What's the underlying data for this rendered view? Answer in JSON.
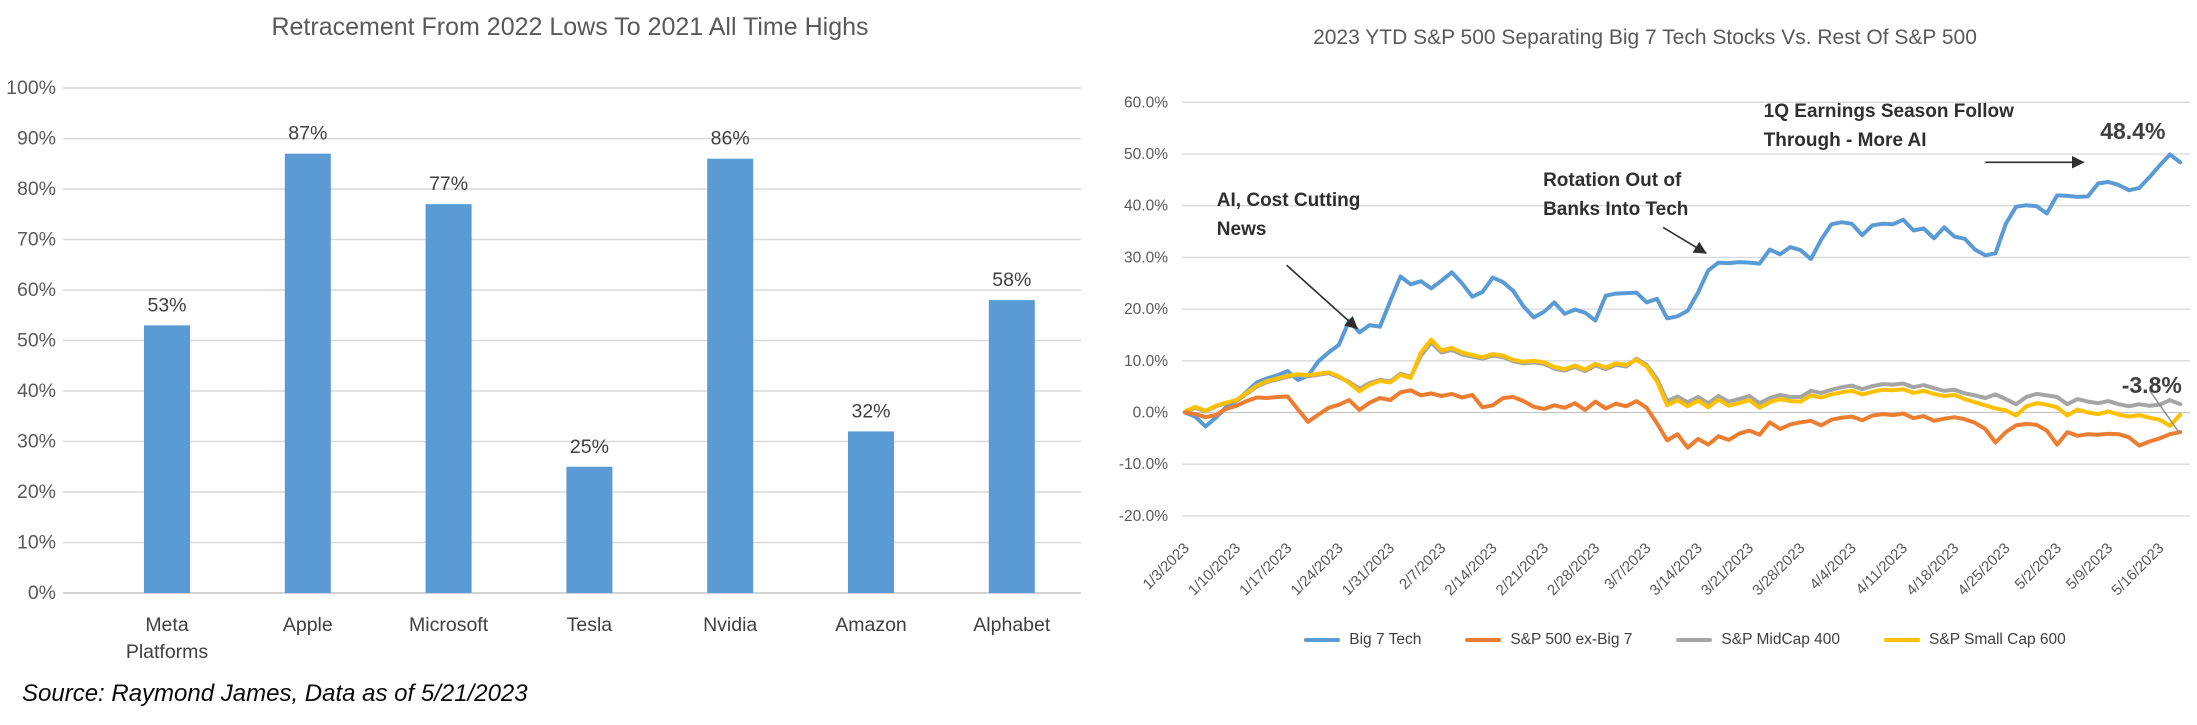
{
  "source_note": "Source: Raymond James, Data as of 5/21/2023",
  "colors": {
    "bar_blue": "#5B9BD5",
    "big7_blue": "#5B9BD5",
    "ex_big7_orange": "#ED7D31",
    "midcap_gray": "#A5A5A5",
    "smallcap_yellow": "#FFC000",
    "gridline": "#D9D9D9",
    "zero_line": "#C6C6C6",
    "axis_text": "#595959",
    "title_text": "#595959",
    "annotation_text": "#2F2F2F"
  },
  "chart_data": [
    {
      "type": "bar",
      "title": "Retracement From 2022 Lows To 2021 All Time Highs",
      "categories": [
        "Meta Platforms",
        "Apple",
        "Microsoft",
        "Tesla",
        "Nvidia",
        "Amazon",
        "Alphabet"
      ],
      "category_lines": [
        [
          "Meta",
          "Platforms"
        ],
        [
          "Apple"
        ],
        [
          "Microsoft"
        ],
        [
          "Tesla"
        ],
        [
          "Nvidia"
        ],
        [
          "Amazon"
        ],
        [
          "Alphabet"
        ]
      ],
      "values": [
        53,
        87,
        77,
        25,
        86,
        32,
        58
      ],
      "data_labels": [
        "53%",
        "87%",
        "77%",
        "25%",
        "86%",
        "32%",
        "58%"
      ],
      "xlabel": "",
      "ylabel": "",
      "ylim": [
        0,
        100
      ],
      "ytick_step": 10,
      "ytick_labels": [
        "0%",
        "10%",
        "20%",
        "30%",
        "40%",
        "50%",
        "60%",
        "70%",
        "80%",
        "90%",
        "100%"
      ],
      "grid": true,
      "legend": "none"
    },
    {
      "type": "line",
      "title": "2023 YTD S&P 500 Separating Big 7 Tech Stocks Vs. Rest Of S&P 500",
      "xlabel": "",
      "ylabel": "",
      "ylim": [
        -20,
        60
      ],
      "ytick_values": [
        60,
        50,
        40,
        30,
        20,
        10,
        0,
        -10,
        -20
      ],
      "ytick_labels": [
        "60.0%",
        "50.0%",
        "40.0%",
        "30.0%",
        "20.0%",
        "10.0%",
        "0.0%",
        "-10.0%",
        "-20.0%"
      ],
      "x_tick_labels": [
        "1/3/2023",
        "1/10/2023",
        "1/17/2023",
        "1/24/2023",
        "1/31/2023",
        "2/7/2023",
        "2/14/2023",
        "2/21/2023",
        "2/28/2023",
        "3/7/2023",
        "3/14/2023",
        "3/21/2023",
        "3/28/2023",
        "4/4/2023",
        "4/11/2023",
        "4/18/2023",
        "4/25/2023",
        "5/2/2023",
        "5/9/2023",
        "5/16/2023"
      ],
      "x_tick_every_n_points": 5,
      "grid": true,
      "legend_position": "bottom",
      "series": [
        {
          "name": "Big 7 Tech",
          "color": "#5B9BD5",
          "final_value_label": "48.4%",
          "values": [
            0.0,
            -0.8,
            -2.7,
            -1.0,
            1.0,
            2.2,
            4.0,
            5.8,
            6.6,
            7.2,
            8.0,
            6.3,
            7.1,
            9.9,
            11.6,
            13.1,
            17.8,
            15.5,
            16.9,
            16.6,
            21.5,
            26.3,
            24.8,
            25.4,
            24.0,
            25.5,
            27.1,
            25.0,
            22.4,
            23.3,
            26.1,
            25.2,
            23.5,
            20.5,
            18.4,
            19.5,
            21.3,
            19.1,
            19.9,
            19.3,
            17.8,
            22.6,
            23.0,
            23.1,
            23.2,
            21.3,
            22.0,
            18.2,
            18.6,
            19.7,
            23.2,
            27.5,
            29.0,
            28.9,
            29.1,
            29.0,
            28.8,
            31.5,
            30.6,
            32.0,
            31.4,
            29.7,
            33.4,
            36.4,
            36.8,
            36.5,
            34.3,
            36.2,
            36.5,
            36.4,
            37.3,
            35.2,
            35.6,
            33.7,
            35.8,
            34.0,
            33.6,
            31.5,
            30.4,
            30.8,
            36.5,
            39.8,
            40.1,
            39.9,
            38.5,
            42.0,
            41.9,
            41.7,
            41.8,
            44.3,
            44.6,
            44.0,
            43.0,
            43.4,
            45.5,
            47.8,
            49.9,
            48.4
          ]
        },
        {
          "name": "S&P 500 ex-Big 7",
          "color": "#ED7D31",
          "final_value_label": "-3.8%",
          "values": [
            0.0,
            -0.3,
            -0.9,
            -0.5,
            0.7,
            1.3,
            2.2,
            2.9,
            2.8,
            3.0,
            3.1,
            0.6,
            -1.8,
            -0.4,
            0.9,
            1.5,
            2.4,
            0.5,
            1.9,
            2.8,
            2.4,
            3.9,
            4.3,
            3.3,
            3.7,
            3.2,
            3.6,
            2.9,
            3.4,
            1.0,
            1.4,
            2.8,
            3.0,
            2.2,
            1.1,
            0.7,
            1.4,
            0.9,
            1.8,
            0.5,
            2.1,
            0.8,
            1.7,
            1.2,
            2.2,
            0.9,
            -2.1,
            -5.4,
            -4.2,
            -6.8,
            -5.1,
            -6.2,
            -4.6,
            -5.3,
            -4.1,
            -3.5,
            -4.3,
            -1.9,
            -3.2,
            -2.3,
            -1.9,
            -1.6,
            -2.5,
            -1.4,
            -1.0,
            -0.8,
            -1.5,
            -0.6,
            -0.3,
            -0.5,
            -0.2,
            -1.1,
            -0.7,
            -1.6,
            -1.2,
            -0.9,
            -1.3,
            -2.0,
            -3.2,
            -5.8,
            -3.8,
            -2.5,
            -2.2,
            -2.4,
            -3.5,
            -6.2,
            -3.8,
            -4.5,
            -4.2,
            -4.3,
            -4.1,
            -4.2,
            -4.8,
            -6.4,
            -5.6,
            -5.0,
            -4.2,
            -3.8
          ]
        },
        {
          "name": "S&P MidCap 400",
          "color": "#A5A5A5",
          "values": [
            0.1,
            0.9,
            0.2,
            1.2,
            1.8,
            2.2,
            3.6,
            5.0,
            5.9,
            6.4,
            6.9,
            7.2,
            7.0,
            7.3,
            7.6,
            6.8,
            5.9,
            4.6,
            5.7,
            6.3,
            6.0,
            7.5,
            6.9,
            11.0,
            13.5,
            11.6,
            12.1,
            11.2,
            10.8,
            10.4,
            11.0,
            10.7,
            9.9,
            9.5,
            9.7,
            9.4,
            8.5,
            8.1,
            8.8,
            8.0,
            9.1,
            8.4,
            9.2,
            8.9,
            10.4,
            9.2,
            6.5,
            2.2,
            3.1,
            2.0,
            3.0,
            1.8,
            3.2,
            2.1,
            2.6,
            3.2,
            1.8,
            2.8,
            3.4,
            3.0,
            3.0,
            4.2,
            3.8,
            4.4,
            4.9,
            5.2,
            4.5,
            5.1,
            5.5,
            5.4,
            5.6,
            4.9,
            5.3,
            4.7,
            4.2,
            4.4,
            3.7,
            3.3,
            2.8,
            3.5,
            2.6,
            1.6,
            3.0,
            3.6,
            3.3,
            3.0,
            1.6,
            2.6,
            2.1,
            1.8,
            2.2,
            1.6,
            1.2,
            1.6,
            1.3,
            1.5,
            2.4,
            1.6
          ]
        },
        {
          "name": "S&P Small Cap 600",
          "color": "#FFC000",
          "values": [
            0.2,
            1.1,
            0.3,
            1.3,
            1.9,
            2.4,
            3.8,
            5.2,
            6.1,
            6.6,
            7.1,
            7.4,
            7.2,
            7.5,
            7.8,
            7.0,
            5.7,
            4.1,
            5.4,
            6.1,
            5.8,
            7.3,
            6.7,
            11.6,
            14.1,
            12.0,
            12.5,
            11.6,
            11.1,
            10.7,
            11.3,
            11.0,
            10.2,
            9.8,
            10.0,
            9.7,
            8.8,
            8.4,
            9.1,
            8.3,
            9.4,
            8.7,
            9.5,
            9.2,
            10.2,
            8.9,
            6.0,
            1.4,
            2.4,
            1.2,
            2.3,
            1.0,
            2.5,
            1.3,
            1.8,
            2.4,
            0.9,
            2.0,
            2.6,
            2.2,
            2.1,
            3.3,
            2.9,
            3.5,
            3.9,
            4.2,
            3.5,
            4.0,
            4.4,
            4.3,
            4.5,
            3.8,
            4.2,
            3.6,
            3.2,
            3.4,
            2.6,
            2.0,
            1.4,
            0.8,
            0.4,
            -0.6,
            1.2,
            1.8,
            1.5,
            1.0,
            -0.6,
            0.6,
            0.0,
            -0.3,
            0.2,
            -0.4,
            -0.8,
            -0.5,
            -1.0,
            -1.4,
            -2.6,
            -0.4
          ]
        }
      ],
      "annotations": [
        {
          "id": "ai",
          "lines": [
            "AI, Cost Cutting",
            "News"
          ],
          "day": 3.1,
          "val": 43.8,
          "arrow": {
            "from": [
              9.9,
              28.5
            ],
            "to": [
              16.8,
              16.2
            ]
          }
        },
        {
          "id": "rotation",
          "lines": [
            "Rotation Out of",
            "Banks Into Tech"
          ],
          "day": 34.9,
          "val": 47.6,
          "arrow": {
            "from": [
              46.6,
              35.8
            ],
            "to": [
              50.8,
              30.8
            ]
          }
        },
        {
          "id": "earnings",
          "lines": [
            "1Q Earnings Season Follow",
            "Through - More AI"
          ],
          "day": 56.4,
          "val": 61.0,
          "arrow": {
            "from": [
              78.0,
              48.4
            ],
            "to": [
              87.6,
              48.4
            ]
          }
        },
        {
          "id": "end-high",
          "lines": [
            "48.4%"
          ],
          "day": 89.2,
          "val": 57.0
        },
        {
          "id": "end-low",
          "lines": [
            "-3.8%"
          ],
          "day": 91.3,
          "val": 7.8,
          "leader": {
            "from": [
              94.0,
              4.3
            ],
            "to": [
              96.9,
              -3.9
            ]
          }
        }
      ]
    }
  ]
}
